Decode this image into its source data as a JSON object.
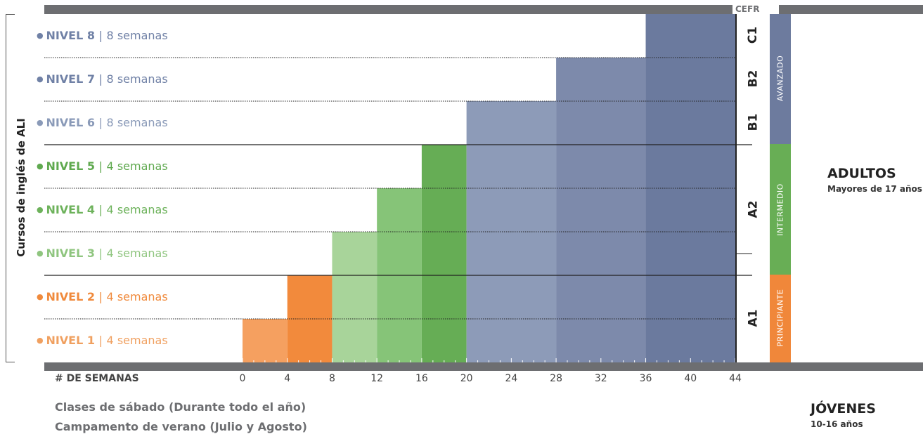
{
  "colors": {
    "principiante": "#f0873a",
    "intermedio": "#68ae55",
    "avanzado": "#6d7b9e",
    "bar": "#6d6e71"
  },
  "side_label": "Cursos de inglés de ALI",
  "cefr_header": "CEFR",
  "axis_label": "# DE SEMANAS",
  "ticks": [
    "0",
    "4",
    "8",
    "12",
    "16",
    "20",
    "24",
    "28",
    "32",
    "36",
    "40",
    "44"
  ],
  "levels": [
    {
      "name": "NIVEL 8",
      "sep": "|",
      "weeks": "8 semanas",
      "color": "#7081a6"
    },
    {
      "name": "NIVEL 7",
      "sep": "|",
      "weeks": "8 semanas",
      "color": "#7081a6"
    },
    {
      "name": "NIVEL 6",
      "sep": "|",
      "weeks": "8 semanas",
      "color": "#8a9ab8"
    },
    {
      "name": "NIVEL 5",
      "sep": "|",
      "weeks": "4 semanas",
      "color": "#5fa94f"
    },
    {
      "name": "NIVEL 4",
      "sep": "|",
      "weeks": "4 semanas",
      "color": "#6db25b"
    },
    {
      "name": "NIVEL 3",
      "sep": "|",
      "weeks": "4 semanas",
      "color": "#8fc57f"
    },
    {
      "name": "NIVEL 2",
      "sep": "|",
      "weeks": "4 semanas",
      "color": "#f08a3c"
    },
    {
      "name": "NIVEL 1",
      "sep": "|",
      "weeks": "4 semanas",
      "color": "#f0a060"
    }
  ],
  "cefr": [
    "C1",
    "B2",
    "B1",
    "A2",
    "A1"
  ],
  "categories": [
    "AVANZADO",
    "INTERMEDIO",
    "PRINCIPIANTE"
  ],
  "adultos": {
    "title": "ADULTOS",
    "subtitle": "Mayores de 17 años"
  },
  "jovenes": {
    "title": "JÓVENES",
    "subtitle": "10-16 años"
  },
  "bottom_notes": [
    "Clases de sábado (Durante todo el año)",
    "Campamento de verano (Julio y Agosto)"
  ],
  "chart_data": {
    "type": "bar",
    "xlabel": "# DE SEMANAS",
    "xlim": [
      0,
      44
    ],
    "categories": [
      "NIVEL 1",
      "NIVEL 2",
      "NIVEL 3",
      "NIVEL 4",
      "NIVEL 5",
      "NIVEL 6",
      "NIVEL 7",
      "NIVEL 8"
    ],
    "start_week": [
      0,
      4,
      8,
      12,
      16,
      20,
      28,
      36
    ],
    "end_week": [
      4,
      8,
      12,
      16,
      20,
      28,
      36,
      44
    ],
    "duration_weeks": [
      4,
      4,
      4,
      4,
      4,
      8,
      8,
      8
    ],
    "colors": [
      "#f5a060",
      "#f28a3c",
      "#a8d49a",
      "#86c478",
      "#66ad55",
      "#8d9bb8",
      "#7d8aab",
      "#6b7a9e"
    ]
  }
}
